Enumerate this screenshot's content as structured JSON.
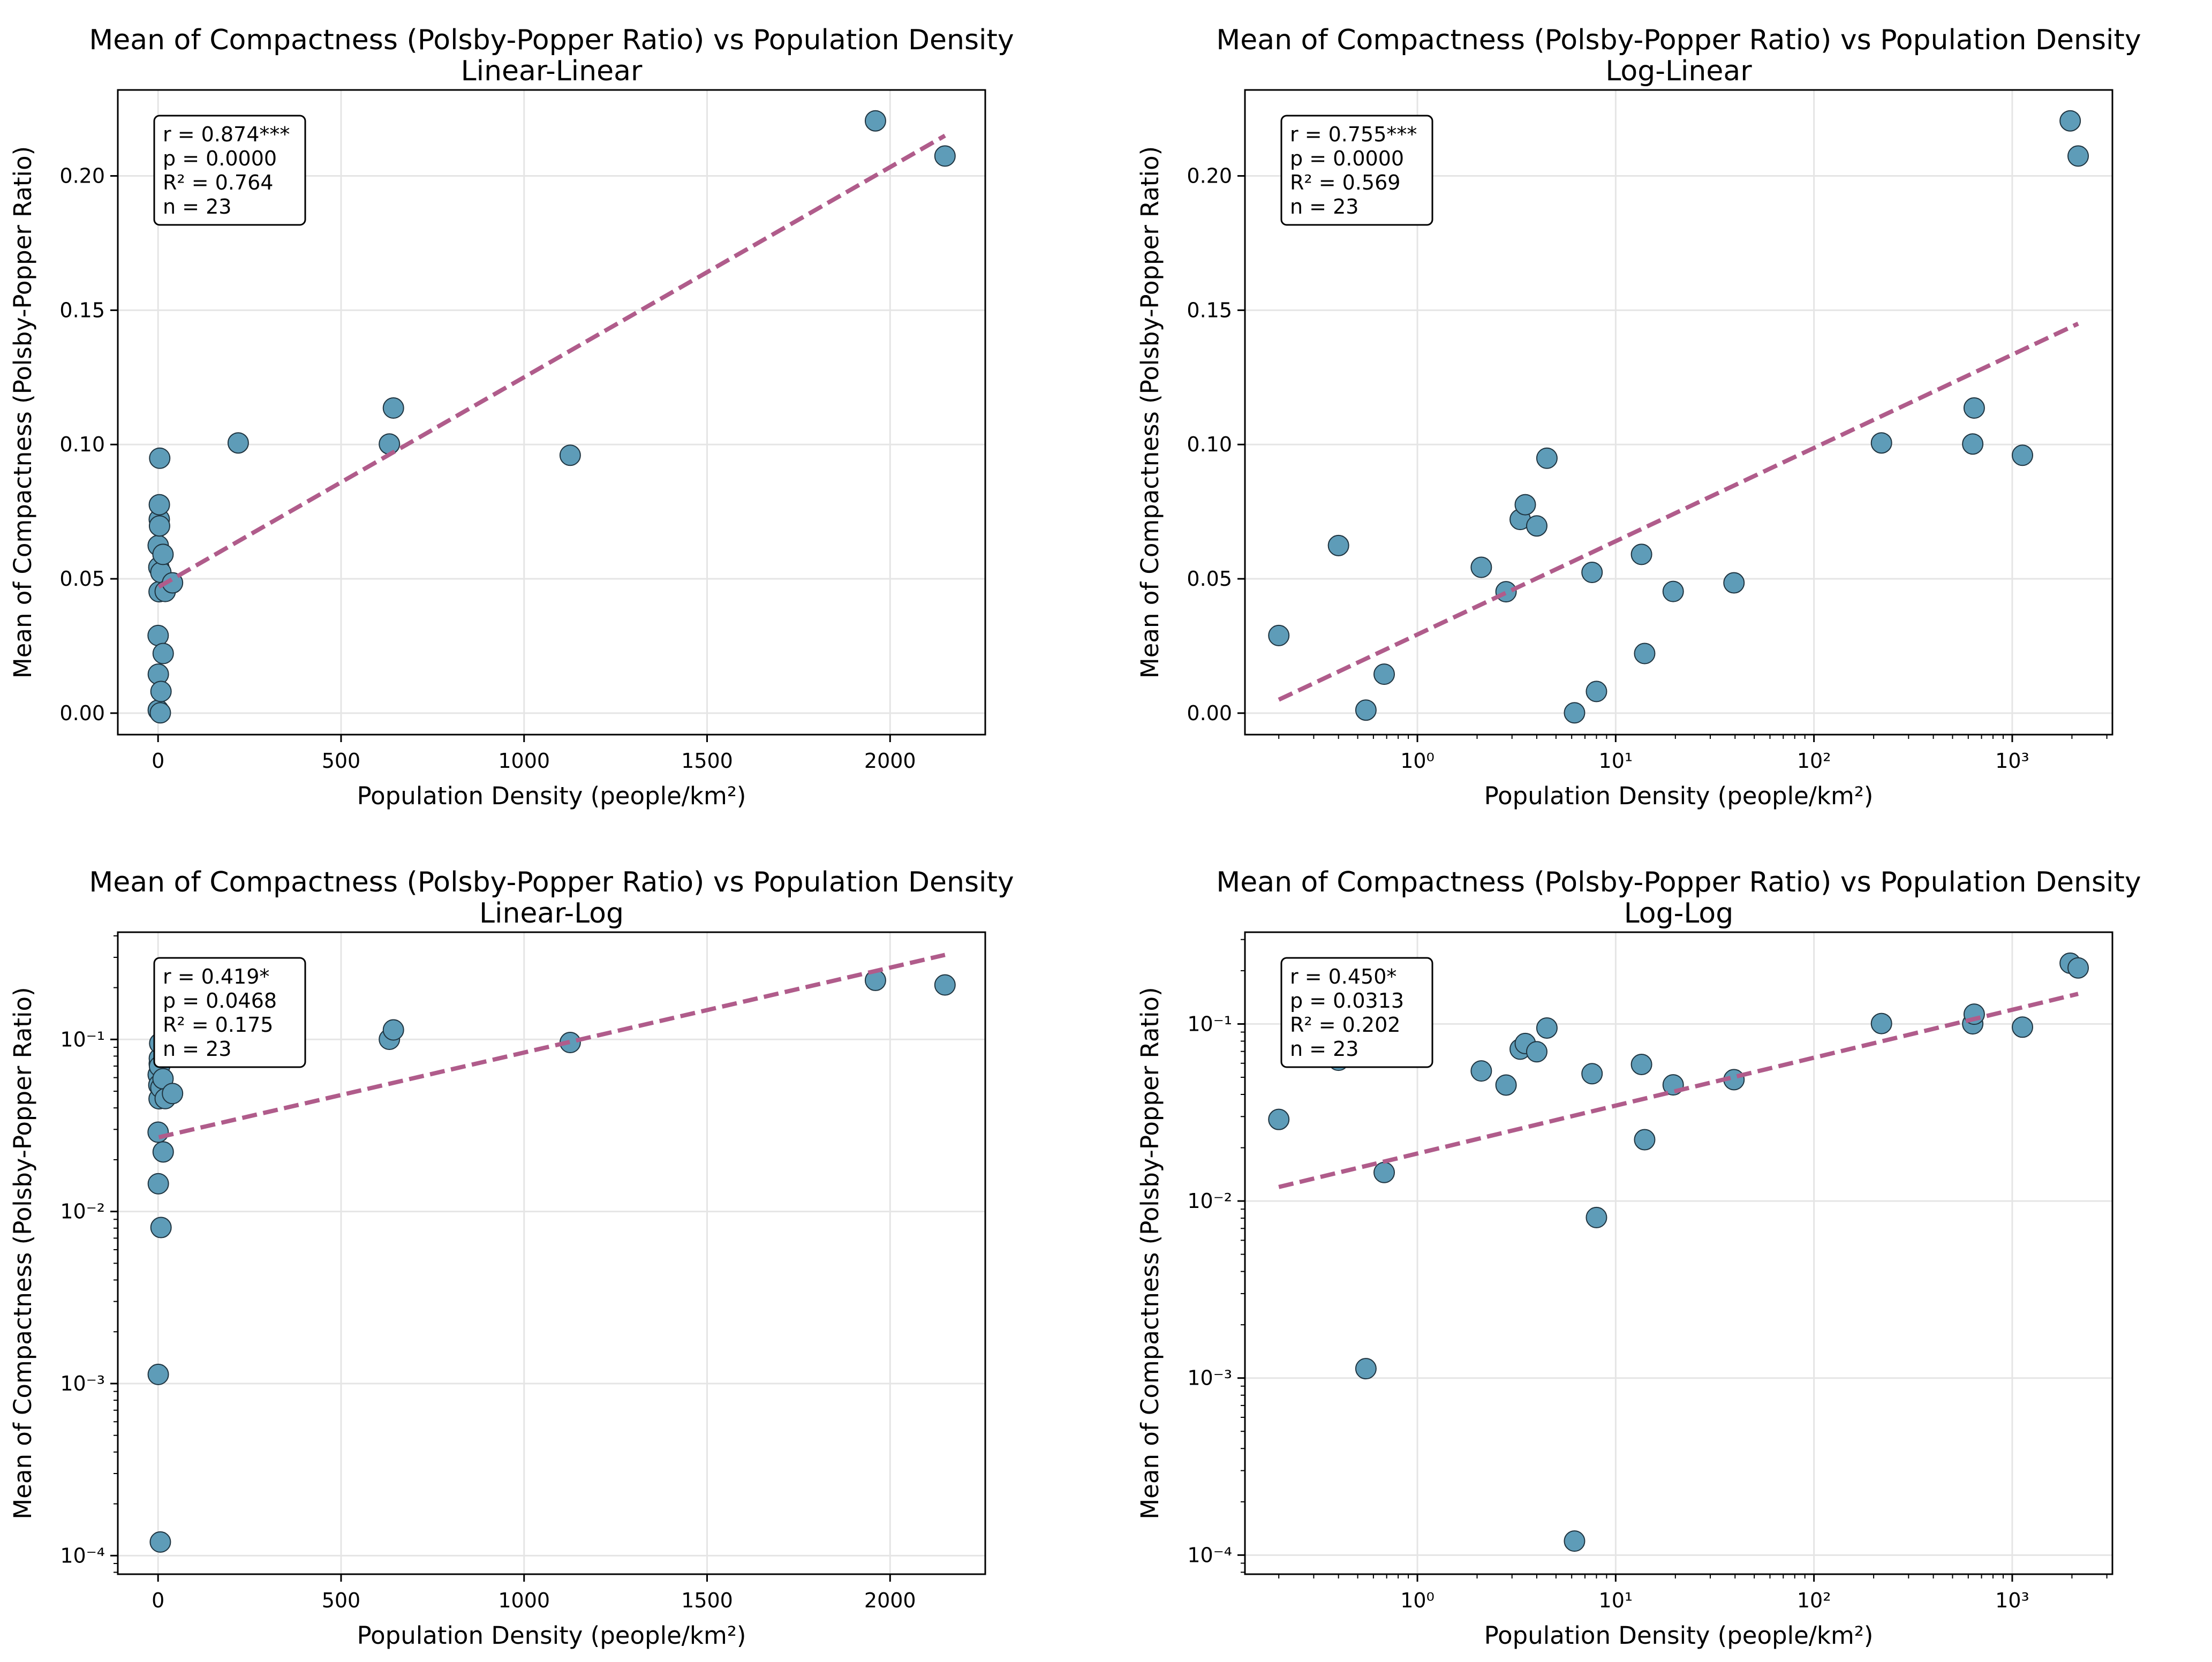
{
  "chart_data": [
    {
      "type": "scatter",
      "title": "Mean of Compactness (Polsby-Popper Ratio) vs Population Density",
      "subtitle": "Linear-Linear",
      "xlabel": "Population Density (people/km²)",
      "ylabel": "Mean of Compactness (Polsby-Popper Ratio)",
      "xscale": "linear",
      "yscale": "linear",
      "xlim": [
        -110,
        2260
      ],
      "ylim": [
        -0.008,
        0.232
      ],
      "xticks": [
        0,
        500,
        1000,
        1500,
        2000
      ],
      "xticklabels": [
        "0",
        "500",
        "1000",
        "1500",
        "2000"
      ],
      "yticks": [
        0.0,
        0.05,
        0.1,
        0.15,
        0.2
      ],
      "yticklabels": [
        "0.00",
        "0.05",
        "0.10",
        "0.15",
        "0.20"
      ],
      "grid": true,
      "stats": [
        "r = 0.874***",
        "p = 0.0000",
        "R² = 0.764",
        "n = 23"
      ],
      "fit": {
        "x": [
          2,
          2150
        ],
        "y": [
          0.047,
          0.215
        ]
      }
    },
    {
      "type": "scatter",
      "title": "Mean of Compactness (Polsby-Popper Ratio) vs Population Density",
      "subtitle": "Log-Linear",
      "xlabel": "Population Density (people/km²)",
      "ylabel": "Mean of Compactness (Polsby-Popper Ratio)",
      "xscale": "log",
      "yscale": "linear",
      "xlim": [
        0.135,
        3200
      ],
      "ylim": [
        -0.008,
        0.232
      ],
      "xticks": [
        1,
        10,
        100,
        1000
      ],
      "xticklabels": [
        "10⁰",
        "10¹",
        "10²",
        "10³"
      ],
      "yticks": [
        0.0,
        0.05,
        0.1,
        0.15,
        0.2
      ],
      "yticklabels": [
        "0.00",
        "0.05",
        "0.10",
        "0.15",
        "0.20"
      ],
      "grid": true,
      "stats": [
        "r = 0.755***",
        "p = 0.0000",
        "R² = 0.569",
        "n = 23"
      ],
      "fit": {
        "x": [
          0.2,
          2150
        ],
        "y": [
          0.005,
          0.145
        ]
      }
    },
    {
      "type": "scatter",
      "title": "Mean of Compactness (Polsby-Popper Ratio) vs Population Density",
      "subtitle": "Linear-Log",
      "xlabel": "Population Density (people/km²)",
      "ylabel": "Mean of Compactness (Polsby-Popper Ratio)",
      "xscale": "linear",
      "yscale": "log",
      "xlim": [
        -110,
        2260
      ],
      "ylim": [
        7.8e-05,
        0.42
      ],
      "xticks": [
        0,
        500,
        1000,
        1500,
        2000
      ],
      "xticklabels": [
        "0",
        "500",
        "1000",
        "1500",
        "2000"
      ],
      "yticks": [
        0.0001,
        0.001,
        0.01,
        0.1
      ],
      "yticklabels": [
        "10⁻⁴",
        "10⁻³",
        "10⁻²",
        "10⁻¹"
      ],
      "grid": true,
      "stats": [
        "r = 0.419*",
        "p = 0.0468",
        "R² = 0.175",
        "n = 23"
      ],
      "fit": {
        "x": [
          2,
          2150
        ],
        "y": [
          0.027,
          0.31
        ]
      }
    },
    {
      "type": "scatter",
      "title": "Mean of Compactness (Polsby-Popper Ratio) vs Population Density",
      "subtitle": "Log-Log",
      "xlabel": "Population Density (people/km²)",
      "ylabel": "Mean of Compactness (Polsby-Popper Ratio)",
      "xscale": "log",
      "yscale": "log",
      "xlim": [
        0.135,
        3200
      ],
      "ylim": [
        7.8e-05,
        0.33
      ],
      "xticks": [
        1,
        10,
        100,
        1000
      ],
      "xticklabels": [
        "10⁰",
        "10¹",
        "10²",
        "10³"
      ],
      "yticks": [
        0.0001,
        0.001,
        0.01,
        0.1
      ],
      "yticklabels": [
        "10⁻⁴",
        "10⁻³",
        "10⁻²",
        "10⁻¹"
      ],
      "grid": true,
      "stats": [
        "r = 0.450*",
        "p = 0.0313",
        "R² = 0.202",
        "n = 23"
      ],
      "fit": {
        "x": [
          0.2,
          2150
        ],
        "y": [
          0.012,
          0.148
        ]
      }
    }
  ],
  "points": {
    "x": [
      0.2,
      0.4,
      0.55,
      0.68,
      2.1,
      2.8,
      3.3,
      3.5,
      4.0,
      4.5,
      6.2,
      7.6,
      8.0,
      13.5,
      14.0,
      19.5,
      39.5,
      219,
      632,
      643,
      1126,
      1960,
      2150
    ],
    "y": [
      0.0289,
      0.0624,
      0.00113,
      0.0145,
      0.0543,
      0.0452,
      0.0721,
      0.0776,
      0.0697,
      0.0949,
      0.00012,
      0.0524,
      0.00807,
      0.0591,
      0.0222,
      0.0453,
      0.0485,
      0.1006,
      0.1002,
      0.1136,
      0.096,
      0.2205,
      0.2074
    ]
  },
  "colors": {
    "point_fill": "#5e9cb8",
    "point_edge": "#1f3440",
    "fit_line": "#b05c8b",
    "grid": "#e5e5e5",
    "axes": "#000000"
  }
}
